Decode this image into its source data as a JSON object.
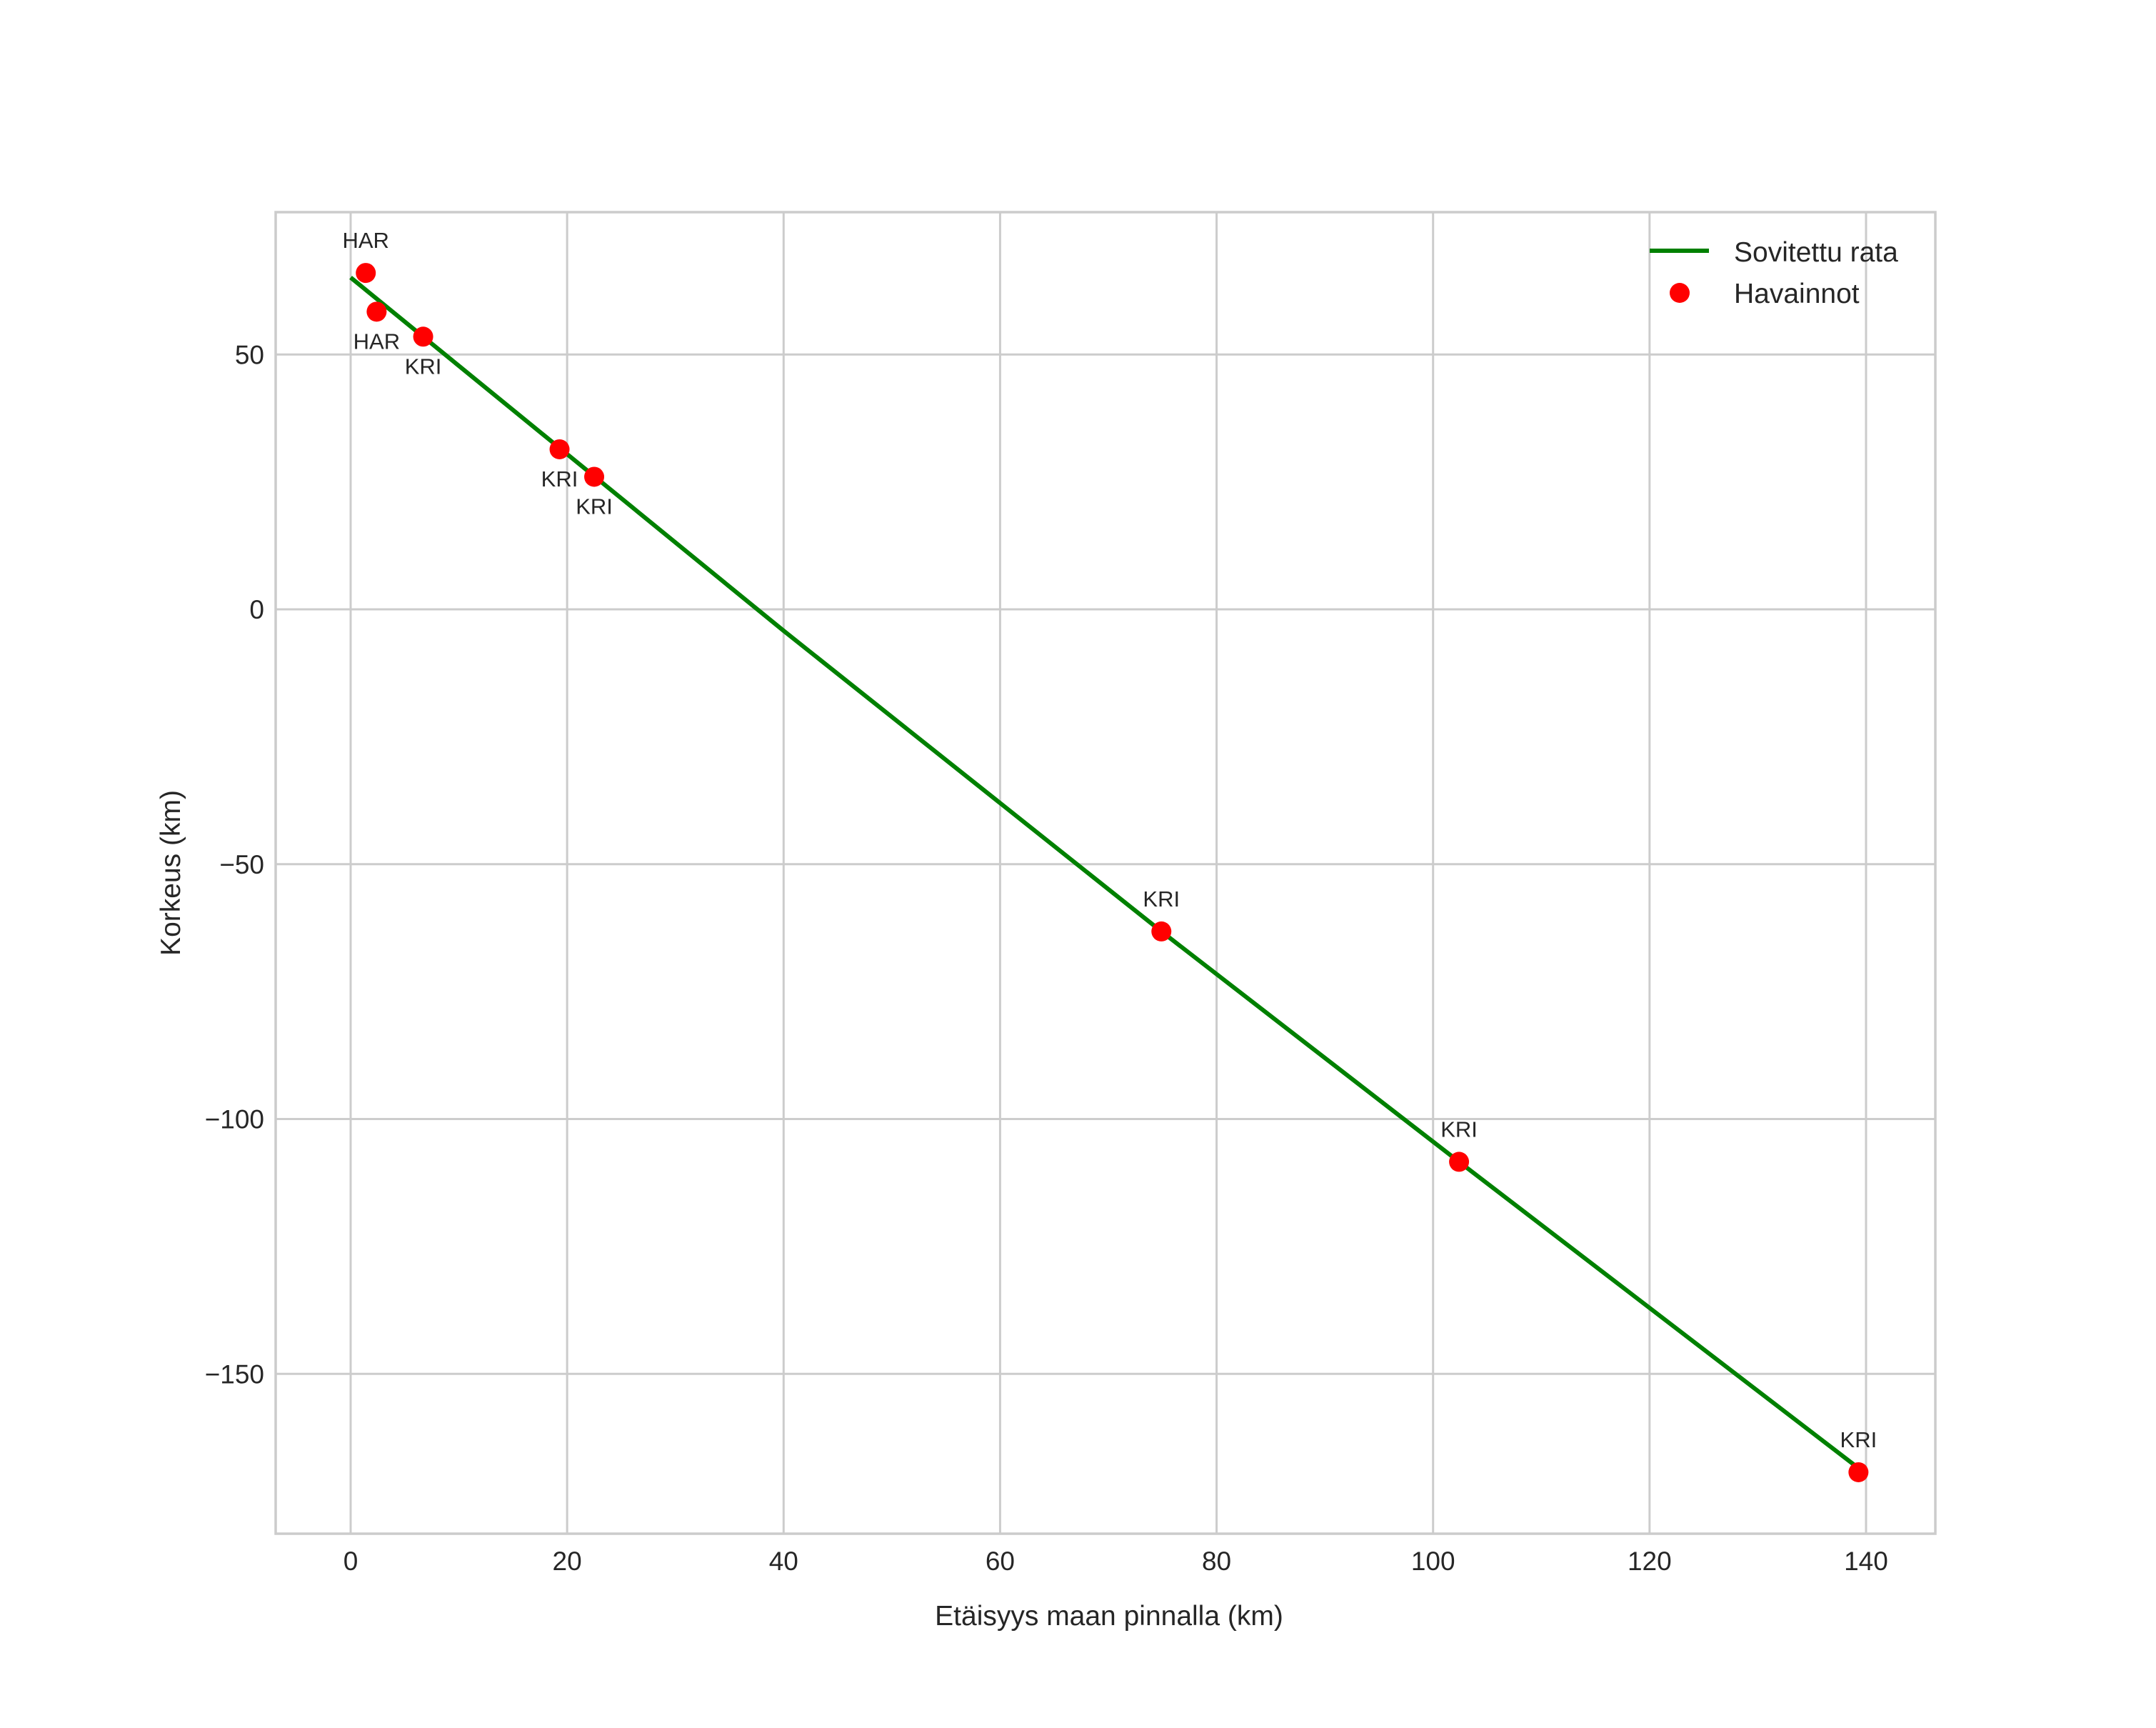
{
  "chart_data": {
    "type": "scatter",
    "title": "",
    "xlabel": "Etäisyys maan pinnalla (km)",
    "ylabel": "Korkeus (km)",
    "xlim": [
      -7,
      146
    ],
    "ylim": [
      -180,
      78
    ],
    "xticks": [
      0,
      20,
      40,
      60,
      80,
      100,
      120,
      140
    ],
    "xtick_labels": [
      "0",
      "20",
      "40",
      "60",
      "80",
      "100",
      "120",
      "140"
    ],
    "yticks": [
      50,
      0,
      -50,
      -100,
      -150
    ],
    "ytick_labels": [
      "50",
      "0",
      "−50",
      "−100",
      "−150"
    ],
    "grid": true,
    "legend_position": "upper right",
    "series": [
      {
        "name": "Sovitettu rata",
        "type": "line",
        "color": "#008000",
        "x": [
          0,
          40,
          74.9,
          102.4,
          139.3
        ],
        "y": [
          65.1,
          -4.2,
          -63.2,
          -108.4,
          -168.5
        ]
      },
      {
        "name": "Havainnot",
        "type": "scatter",
        "color": "#ff0000",
        "points": [
          {
            "x": 1.4,
            "y": 66.0,
            "label": "HAR",
            "label_pos": "above"
          },
          {
            "x": 2.4,
            "y": 58.4,
            "label": "HAR",
            "label_pos": "below"
          },
          {
            "x": 6.7,
            "y": 53.5,
            "label": "KRI",
            "label_pos": "below"
          },
          {
            "x": 19.3,
            "y": 31.4,
            "label": "KRI",
            "label_pos": "below"
          },
          {
            "x": 22.5,
            "y": 26.0,
            "label": "KRI",
            "label_pos": "below"
          },
          {
            "x": 74.9,
            "y": -63.2,
            "label": "KRI",
            "label_pos": "above"
          },
          {
            "x": 102.4,
            "y": -108.4,
            "label": "KRI",
            "label_pos": "above"
          },
          {
            "x": 139.3,
            "y": -169.3,
            "label": "KRI",
            "label_pos": "above"
          }
        ]
      }
    ]
  },
  "legend": {
    "items": [
      {
        "label": "Sovitettu rata",
        "symbol": "line",
        "color": "#008000"
      },
      {
        "label": "Havainnot",
        "symbol": "dot",
        "color": "#ff0000"
      }
    ]
  },
  "colors": {
    "grid": "#cccccc",
    "text": "#262626",
    "line": "#008000",
    "points": "#ff0000",
    "background": "#ffffff"
  }
}
